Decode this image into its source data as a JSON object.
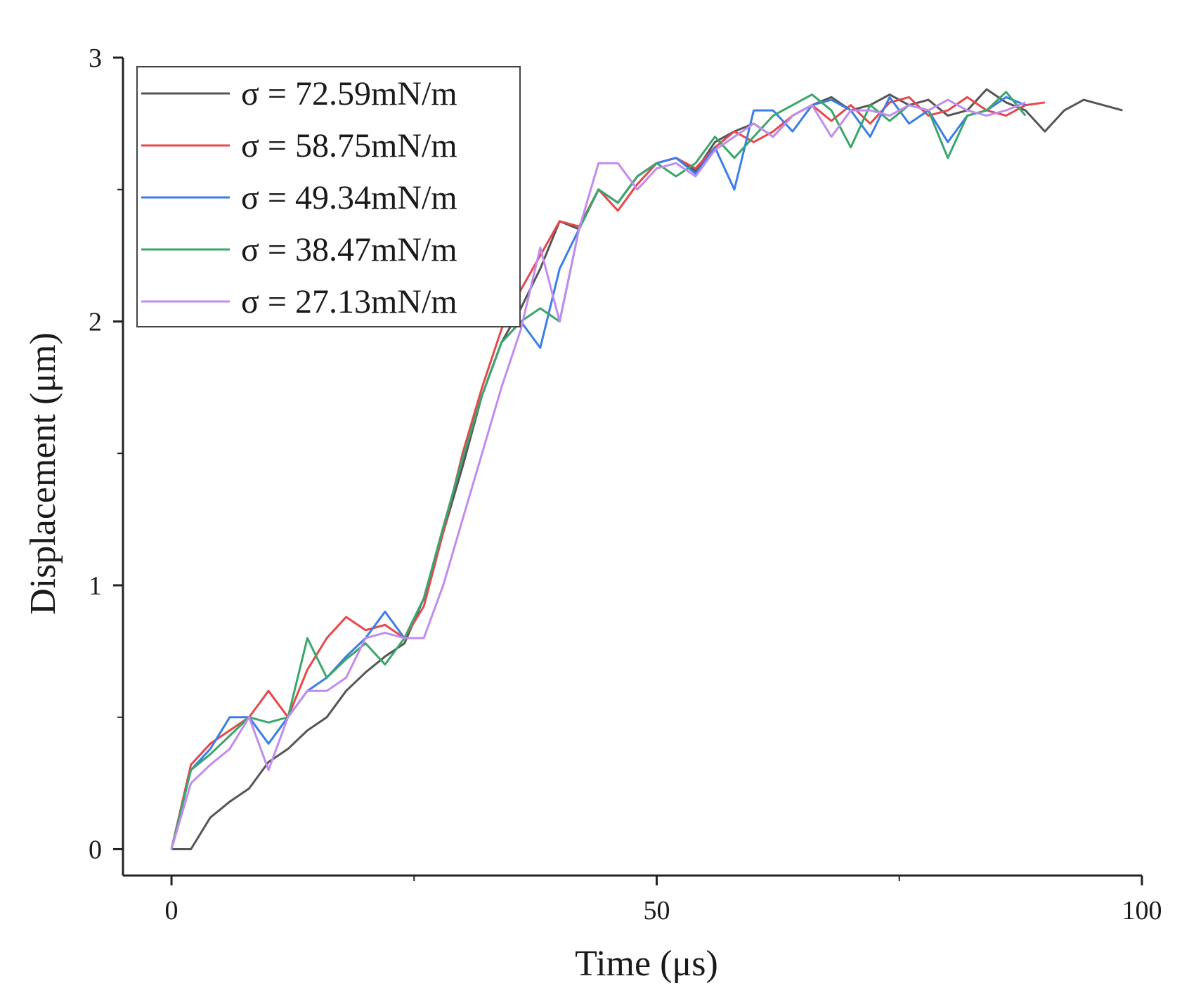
{
  "chart_data": {
    "type": "line",
    "title": "",
    "xlabel": "Time (μs)",
    "ylabel": "Displacement (μm)",
    "xlim": [
      -5,
      100
    ],
    "ylim": [
      -0.1,
      3
    ],
    "xticks": [
      0,
      50,
      100
    ],
    "xticks_minor": [
      25,
      75
    ],
    "yticks": [
      0,
      1,
      2,
      3
    ],
    "yticks_minor": [
      0.5,
      1.5,
      2.5
    ],
    "grid": false,
    "legend_position": "top-left",
    "series": [
      {
        "name": "σ = 72.59mN/m",
        "color": "#555555",
        "points": [
          [
            0,
            0
          ],
          [
            2,
            0
          ],
          [
            4,
            0.12
          ],
          [
            6,
            0.18
          ],
          [
            8,
            0.23
          ],
          [
            10,
            0.33
          ],
          [
            12,
            0.38
          ],
          [
            14,
            0.45
          ],
          [
            16,
            0.5
          ],
          [
            18,
            0.6
          ],
          [
            20,
            0.67
          ],
          [
            22,
            0.73
          ],
          [
            24,
            0.78
          ],
          [
            26,
            0.95
          ],
          [
            28,
            1.2
          ],
          [
            30,
            1.45
          ],
          [
            32,
            1.72
          ],
          [
            34,
            1.92
          ],
          [
            36,
            2.05
          ],
          [
            38,
            2.2
          ],
          [
            40,
            2.38
          ],
          [
            42,
            2.35
          ],
          [
            44,
            2.5
          ],
          [
            46,
            2.45
          ],
          [
            48,
            2.55
          ],
          [
            50,
            2.6
          ],
          [
            52,
            2.62
          ],
          [
            54,
            2.57
          ],
          [
            56,
            2.68
          ],
          [
            58,
            2.72
          ],
          [
            60,
            2.75
          ],
          [
            62,
            2.7
          ],
          [
            64,
            2.78
          ],
          [
            66,
            2.82
          ],
          [
            68,
            2.85
          ],
          [
            70,
            2.8
          ],
          [
            72,
            2.82
          ],
          [
            74,
            2.86
          ],
          [
            76,
            2.82
          ],
          [
            78,
            2.84
          ],
          [
            80,
            2.78
          ],
          [
            82,
            2.8
          ],
          [
            84,
            2.88
          ],
          [
            86,
            2.83
          ],
          [
            88,
            2.8
          ],
          [
            90,
            2.72
          ],
          [
            92,
            2.8
          ],
          [
            94,
            2.84
          ],
          [
            96,
            2.82
          ],
          [
            98,
            2.8
          ]
        ]
      },
      {
        "name": "σ = 58.75mN/m",
        "color": "#e8474a",
        "points": [
          [
            0,
            0
          ],
          [
            2,
            0.32
          ],
          [
            4,
            0.4
          ],
          [
            6,
            0.45
          ],
          [
            8,
            0.5
          ],
          [
            10,
            0.6
          ],
          [
            12,
            0.5
          ],
          [
            14,
            0.68
          ],
          [
            16,
            0.8
          ],
          [
            18,
            0.88
          ],
          [
            20,
            0.83
          ],
          [
            22,
            0.85
          ],
          [
            24,
            0.8
          ],
          [
            26,
            0.92
          ],
          [
            28,
            1.2
          ],
          [
            30,
            1.5
          ],
          [
            32,
            1.75
          ],
          [
            34,
            1.97
          ],
          [
            36,
            2.12
          ],
          [
            38,
            2.25
          ],
          [
            40,
            2.38
          ],
          [
            42,
            2.36
          ],
          [
            44,
            2.5
          ],
          [
            46,
            2.42
          ],
          [
            48,
            2.52
          ],
          [
            50,
            2.6
          ],
          [
            52,
            2.62
          ],
          [
            54,
            2.58
          ],
          [
            56,
            2.66
          ],
          [
            58,
            2.72
          ],
          [
            60,
            2.68
          ],
          [
            62,
            2.72
          ],
          [
            64,
            2.78
          ],
          [
            66,
            2.82
          ],
          [
            68,
            2.76
          ],
          [
            70,
            2.82
          ],
          [
            72,
            2.75
          ],
          [
            74,
            2.83
          ],
          [
            76,
            2.85
          ],
          [
            78,
            2.78
          ],
          [
            80,
            2.8
          ],
          [
            82,
            2.85
          ],
          [
            84,
            2.8
          ],
          [
            86,
            2.78
          ],
          [
            88,
            2.82
          ],
          [
            90,
            2.83
          ]
        ]
      },
      {
        "name": "σ = 49.34mN/m",
        "color": "#3a7ee8",
        "points": [
          [
            0,
            0
          ],
          [
            2,
            0.3
          ],
          [
            4,
            0.38
          ],
          [
            6,
            0.5
          ],
          [
            8,
            0.5
          ],
          [
            10,
            0.4
          ],
          [
            12,
            0.5
          ],
          [
            14,
            0.6
          ],
          [
            16,
            0.65
          ],
          [
            18,
            0.73
          ],
          [
            20,
            0.8
          ],
          [
            22,
            0.9
          ],
          [
            24,
            0.8
          ],
          [
            26,
            0.95
          ],
          [
            28,
            1.22
          ],
          [
            30,
            1.48
          ],
          [
            32,
            1.72
          ],
          [
            34,
            1.92
          ],
          [
            36,
            2.0
          ],
          [
            38,
            1.9
          ],
          [
            40,
            2.2
          ],
          [
            42,
            2.35
          ],
          [
            44,
            2.5
          ],
          [
            46,
            2.45
          ],
          [
            48,
            2.55
          ],
          [
            50,
            2.6
          ],
          [
            52,
            2.62
          ],
          [
            54,
            2.56
          ],
          [
            56,
            2.66
          ],
          [
            58,
            2.5
          ],
          [
            60,
            2.8
          ],
          [
            62,
            2.8
          ],
          [
            64,
            2.72
          ],
          [
            66,
            2.82
          ],
          [
            68,
            2.84
          ],
          [
            70,
            2.8
          ],
          [
            72,
            2.7
          ],
          [
            74,
            2.85
          ],
          [
            76,
            2.75
          ],
          [
            78,
            2.8
          ],
          [
            80,
            2.68
          ],
          [
            82,
            2.78
          ],
          [
            84,
            2.8
          ],
          [
            86,
            2.85
          ],
          [
            88,
            2.82
          ]
        ]
      },
      {
        "name": "σ = 38.47mN/m",
        "color": "#3aa66a",
        "points": [
          [
            0,
            0
          ],
          [
            2,
            0.3
          ],
          [
            4,
            0.36
          ],
          [
            6,
            0.43
          ],
          [
            8,
            0.5
          ],
          [
            10,
            0.48
          ],
          [
            12,
            0.5
          ],
          [
            14,
            0.8
          ],
          [
            16,
            0.65
          ],
          [
            18,
            0.72
          ],
          [
            20,
            0.78
          ],
          [
            22,
            0.7
          ],
          [
            24,
            0.8
          ],
          [
            26,
            0.95
          ],
          [
            28,
            1.22
          ],
          [
            30,
            1.48
          ],
          [
            32,
            1.72
          ],
          [
            34,
            1.92
          ],
          [
            36,
            2.0
          ],
          [
            38,
            2.05
          ],
          [
            40,
            2.0
          ],
          [
            42,
            2.35
          ],
          [
            44,
            2.5
          ],
          [
            46,
            2.45
          ],
          [
            48,
            2.55
          ],
          [
            50,
            2.6
          ],
          [
            52,
            2.55
          ],
          [
            54,
            2.6
          ],
          [
            56,
            2.7
          ],
          [
            58,
            2.62
          ],
          [
            60,
            2.7
          ],
          [
            62,
            2.78
          ],
          [
            64,
            2.82
          ],
          [
            66,
            2.86
          ],
          [
            68,
            2.8
          ],
          [
            70,
            2.66
          ],
          [
            72,
            2.82
          ],
          [
            74,
            2.76
          ],
          [
            76,
            2.82
          ],
          [
            78,
            2.8
          ],
          [
            80,
            2.62
          ],
          [
            82,
            2.78
          ],
          [
            84,
            2.8
          ],
          [
            86,
            2.87
          ],
          [
            88,
            2.78
          ]
        ]
      },
      {
        "name": "σ = 27.13mN/m",
        "color": "#c08cf0",
        "points": [
          [
            0,
            0
          ],
          [
            2,
            0.25
          ],
          [
            4,
            0.32
          ],
          [
            6,
            0.38
          ],
          [
            8,
            0.5
          ],
          [
            10,
            0.3
          ],
          [
            12,
            0.5
          ],
          [
            14,
            0.6
          ],
          [
            16,
            0.6
          ],
          [
            18,
            0.65
          ],
          [
            20,
            0.8
          ],
          [
            22,
            0.82
          ],
          [
            24,
            0.8
          ],
          [
            26,
            0.8
          ],
          [
            28,
            1.0
          ],
          [
            30,
            1.25
          ],
          [
            32,
            1.5
          ],
          [
            34,
            1.75
          ],
          [
            36,
            1.97
          ],
          [
            38,
            2.28
          ],
          [
            40,
            2.0
          ],
          [
            42,
            2.35
          ],
          [
            44,
            2.6
          ],
          [
            46,
            2.6
          ],
          [
            48,
            2.5
          ],
          [
            50,
            2.58
          ],
          [
            52,
            2.6
          ],
          [
            54,
            2.55
          ],
          [
            56,
            2.65
          ],
          [
            58,
            2.7
          ],
          [
            60,
            2.75
          ],
          [
            62,
            2.7
          ],
          [
            64,
            2.78
          ],
          [
            66,
            2.82
          ],
          [
            68,
            2.7
          ],
          [
            70,
            2.8
          ],
          [
            72,
            2.8
          ],
          [
            74,
            2.78
          ],
          [
            76,
            2.82
          ],
          [
            78,
            2.8
          ],
          [
            80,
            2.84
          ],
          [
            82,
            2.8
          ],
          [
            84,
            2.78
          ],
          [
            86,
            2.8
          ],
          [
            88,
            2.83
          ]
        ]
      }
    ]
  }
}
